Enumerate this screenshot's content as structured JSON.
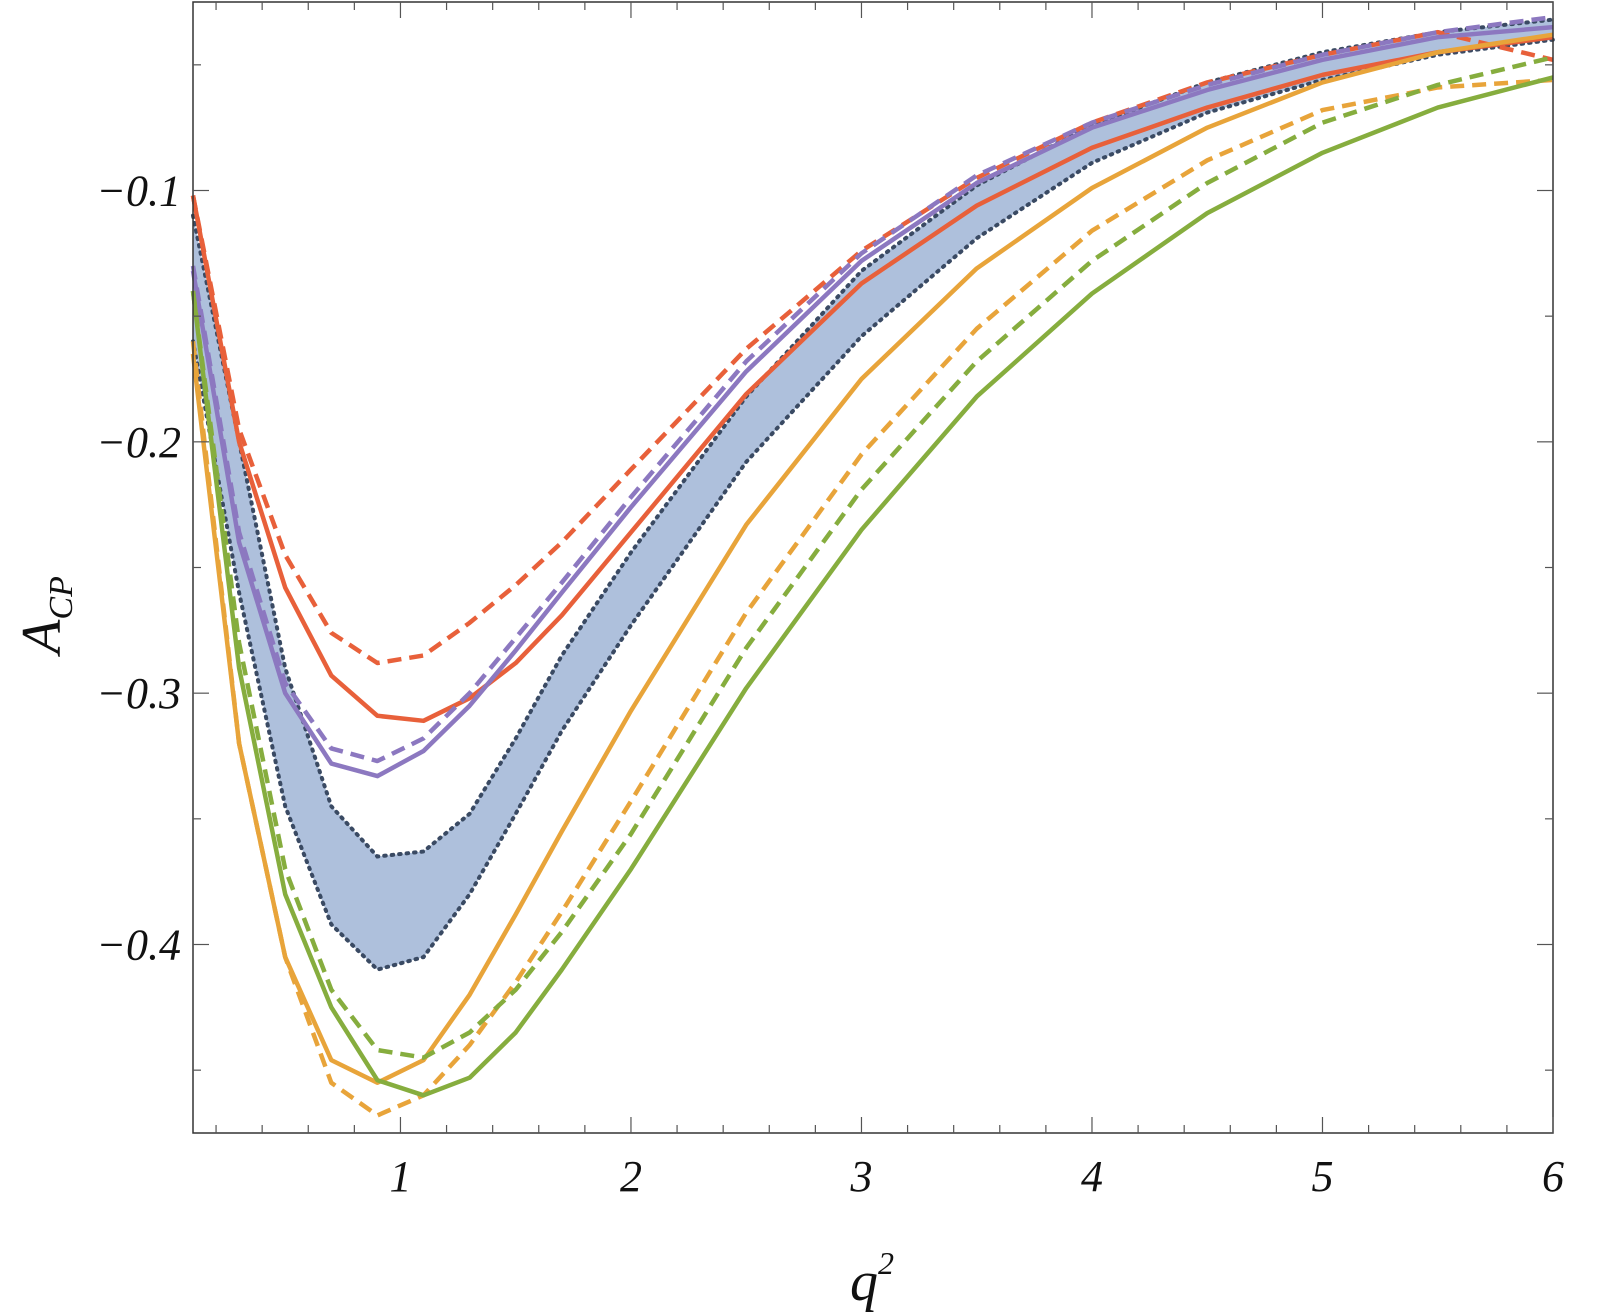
{
  "chart_data": {
    "type": "line",
    "title": "",
    "xlabel": "q",
    "xlabel_superscript": "2",
    "ylabel": "A",
    "ylabel_subscript": "CP",
    "xlim": [
      0.1,
      6.0
    ],
    "ylim": [
      -0.475,
      -0.025
    ],
    "grid": false,
    "legend": "none",
    "x_ticks": [
      1,
      2,
      3,
      4,
      5,
      6
    ],
    "y_ticks": [
      -0.1,
      -0.2,
      -0.3,
      -0.4
    ],
    "x_tick_labels": [
      "1",
      "2",
      "3",
      "4",
      "5",
      "6"
    ],
    "y_tick_labels": [
      "−0.1",
      "−0.2",
      "−0.3",
      "−0.4"
    ],
    "band": {
      "color": "#aec0dc",
      "edge_color": "#3a4a63",
      "x": [
        0.1,
        0.3,
        0.5,
        0.7,
        0.9,
        1.1,
        1.3,
        1.5,
        1.7,
        2.0,
        2.5,
        3.0,
        3.5,
        4.0,
        4.5,
        5.0,
        5.5,
        6.0
      ],
      "upper": [
        -0.11,
        -0.2,
        -0.29,
        -0.345,
        -0.365,
        -0.363,
        -0.348,
        -0.318,
        -0.285,
        -0.244,
        -0.182,
        -0.132,
        -0.098,
        -0.074,
        -0.057,
        -0.045,
        -0.037,
        -0.032
      ],
      "lower": [
        -0.16,
        -0.26,
        -0.345,
        -0.392,
        -0.41,
        -0.405,
        -0.38,
        -0.348,
        -0.315,
        -0.273,
        -0.208,
        -0.158,
        -0.119,
        -0.089,
        -0.069,
        -0.056,
        -0.046,
        -0.04
      ]
    },
    "series": [
      {
        "color": "#e8603a",
        "style": "solid",
        "x": [
          0.1,
          0.3,
          0.5,
          0.7,
          0.9,
          1.1,
          1.3,
          1.5,
          1.7,
          2.0,
          2.5,
          3.0,
          3.5,
          4.0,
          4.5,
          5.0,
          5.5,
          6.0
        ],
        "y": [
          -0.102,
          -0.2,
          -0.258,
          -0.293,
          -0.309,
          -0.311,
          -0.302,
          -0.288,
          -0.269,
          -0.236,
          -0.181,
          -0.137,
          -0.106,
          -0.083,
          -0.067,
          -0.054,
          -0.045,
          -0.039
        ]
      },
      {
        "color": "#e8603a",
        "style": "dashed",
        "x": [
          0.1,
          0.3,
          0.5,
          0.7,
          0.9,
          1.1,
          1.3,
          1.5,
          1.7,
          2.0,
          2.5,
          3.0,
          3.5,
          4.0,
          4.5,
          5.0,
          5.5,
          6.0
        ],
        "y": [
          -0.102,
          -0.195,
          -0.245,
          -0.276,
          -0.288,
          -0.285,
          -0.272,
          -0.257,
          -0.24,
          -0.211,
          -0.163,
          -0.124,
          -0.095,
          -0.073,
          -0.057,
          -0.046,
          -0.037,
          -0.048
        ]
      },
      {
        "color": "#8c78c0",
        "style": "solid",
        "x": [
          0.1,
          0.3,
          0.5,
          0.7,
          0.9,
          1.1,
          1.3,
          1.5,
          1.7,
          2.0,
          2.5,
          3.0,
          3.5,
          4.0,
          4.5,
          5.0,
          5.5,
          6.0
        ],
        "y": [
          -0.132,
          -0.24,
          -0.3,
          -0.328,
          -0.333,
          -0.323,
          -0.305,
          -0.283,
          -0.26,
          -0.226,
          -0.172,
          -0.128,
          -0.097,
          -0.075,
          -0.06,
          -0.048,
          -0.039,
          -0.035
        ]
      },
      {
        "color": "#8c78c0",
        "style": "dashed",
        "x": [
          0.1,
          0.3,
          0.5,
          0.7,
          0.9,
          1.1,
          1.3,
          1.5,
          1.7,
          2.0,
          2.5,
          3.0,
          3.5,
          4.0,
          4.5,
          5.0,
          5.5,
          6.0
        ],
        "y": [
          -0.13,
          -0.236,
          -0.296,
          -0.322,
          -0.327,
          -0.318,
          -0.3,
          -0.278,
          -0.256,
          -0.222,
          -0.168,
          -0.125,
          -0.094,
          -0.073,
          -0.058,
          -0.046,
          -0.037,
          -0.031
        ]
      },
      {
        "color": "#e8a43a",
        "style": "solid",
        "x": [
          0.1,
          0.3,
          0.5,
          0.7,
          0.9,
          1.1,
          1.3,
          1.5,
          1.7,
          2.0,
          2.5,
          3.0,
          3.5,
          4.0,
          4.5,
          5.0,
          5.5,
          6.0
        ],
        "y": [
          -0.165,
          -0.32,
          -0.405,
          -0.446,
          -0.455,
          -0.446,
          -0.42,
          -0.388,
          -0.355,
          -0.307,
          -0.233,
          -0.175,
          -0.131,
          -0.099,
          -0.075,
          -0.057,
          -0.045,
          -0.038
        ]
      },
      {
        "color": "#e8a43a",
        "style": "dashed",
        "x": [
          0.1,
          0.3,
          0.5,
          0.7,
          0.9,
          1.1,
          1.3,
          1.5,
          1.7,
          2.0,
          2.5,
          3.0,
          3.5,
          4.0,
          4.5,
          5.0,
          5.5,
          6.0
        ],
        "y": [
          -0.16,
          -0.32,
          -0.405,
          -0.455,
          -0.468,
          -0.46,
          -0.44,
          -0.415,
          -0.387,
          -0.343,
          -0.268,
          -0.205,
          -0.155,
          -0.116,
          -0.088,
          -0.068,
          -0.059,
          -0.056
        ]
      },
      {
        "color": "#86ad3e",
        "style": "solid",
        "x": [
          0.1,
          0.3,
          0.5,
          0.7,
          0.9,
          1.1,
          1.3,
          1.5,
          1.7,
          2.0,
          2.5,
          3.0,
          3.5,
          4.0,
          4.5,
          5.0,
          5.5,
          6.0
        ],
        "y": [
          -0.14,
          -0.29,
          -0.38,
          -0.425,
          -0.454,
          -0.46,
          -0.453,
          -0.435,
          -0.41,
          -0.37,
          -0.298,
          -0.235,
          -0.182,
          -0.141,
          -0.109,
          -0.085,
          -0.067,
          -0.055
        ]
      },
      {
        "color": "#86ad3e",
        "style": "dashed",
        "x": [
          0.1,
          0.3,
          0.5,
          0.7,
          0.9,
          1.1,
          1.3,
          1.5,
          1.7,
          2.0,
          2.5,
          3.0,
          3.5,
          4.0,
          4.5,
          5.0,
          5.5,
          6.0
        ],
        "y": [
          -0.14,
          -0.28,
          -0.37,
          -0.418,
          -0.442,
          -0.445,
          -0.435,
          -0.418,
          -0.395,
          -0.356,
          -0.282,
          -0.219,
          -0.168,
          -0.128,
          -0.097,
          -0.073,
          -0.058,
          -0.047
        ]
      }
    ]
  }
}
